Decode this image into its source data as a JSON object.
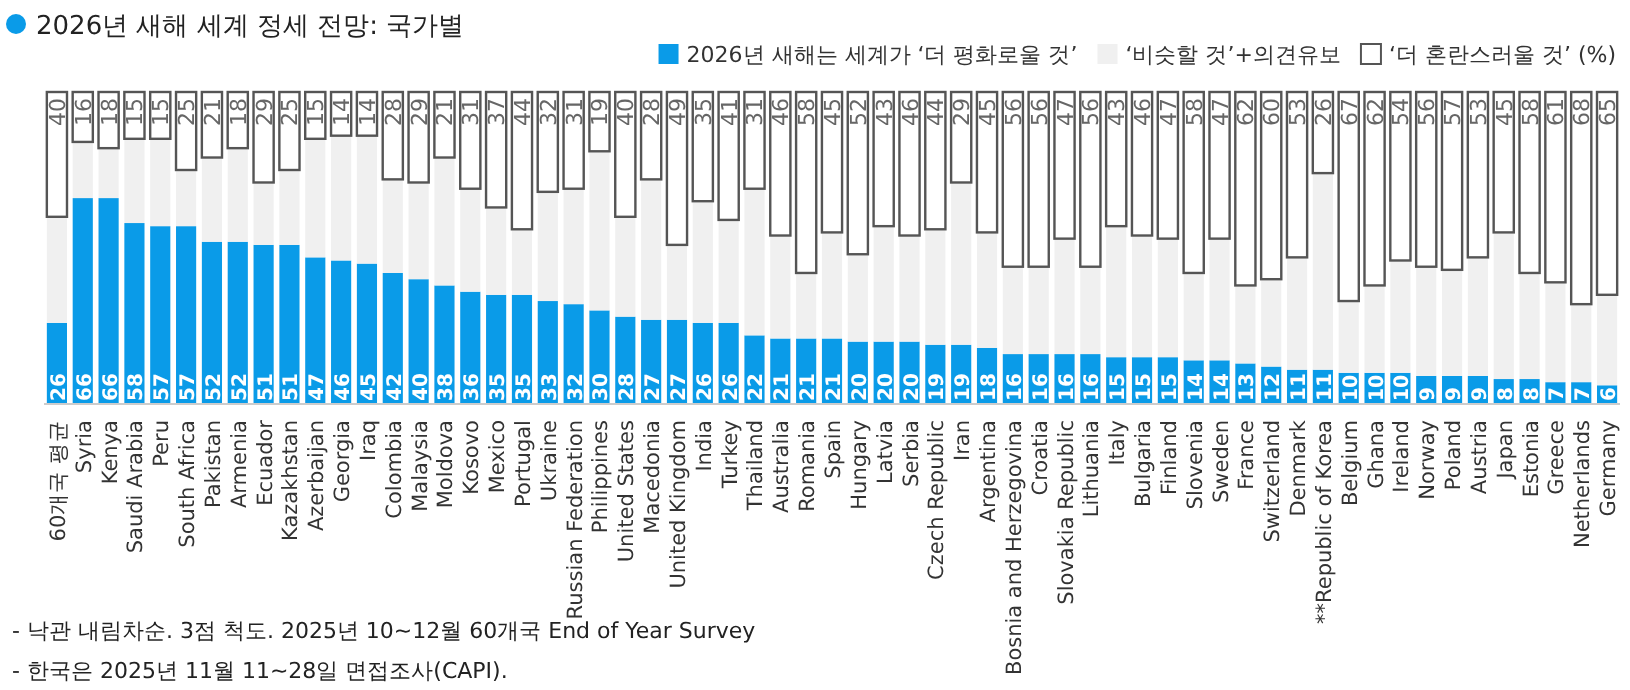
{
  "chart_data": {
    "type": "bar",
    "stacked": true,
    "title": "2026년 새해 세계 정세 전망: 국가별",
    "categories": [
      "60개국 평균",
      "Syria",
      "Kenya",
      "Saudi Arabia",
      "Peru",
      "South Africa",
      "Pakistan",
      "Armenia",
      "Ecuador",
      "Kazakhstan",
      "Azerbaijan",
      "Georgia",
      "Iraq",
      "Colombia",
      "Malaysia",
      "Moldova",
      "Kosovo",
      "Mexico",
      "Portugal",
      "Ukraine",
      "Russian Federation",
      "Philippines",
      "United States",
      "Macedonia",
      "United Kingdom",
      "India",
      "Turkey",
      "Thailand",
      "Australia",
      "Romania",
      "Spain",
      "Hungary",
      "Latvia",
      "Serbia",
      "Czech Republic",
      "Iran",
      "Argentina",
      "Bosnia and Herzegovina",
      "Croatia",
      "Slovakia Republic",
      "Lithuania",
      "Italy",
      "Bulgaria",
      "Finland",
      "Slovenia",
      "Sweden",
      "France",
      "Switzerland",
      "Denmark",
      "**Republic of Korea",
      "Belgium",
      "Ghana",
      "Ireland",
      "Norway",
      "Poland",
      "Austria",
      "Japan",
      "Estonia",
      "Greece",
      "Netherlands",
      "Germany"
    ],
    "series": [
      {
        "name": "2026년 새해는 세계가 ‘더 평화로울 것’",
        "color": "#0a9be8",
        "values": [
          26,
          66,
          66,
          58,
          57,
          57,
          52,
          52,
          51,
          51,
          47,
          46,
          45,
          42,
          40,
          38,
          36,
          35,
          35,
          33,
          32,
          30,
          28,
          27,
          27,
          26,
          26,
          22,
          21,
          21,
          21,
          20,
          20,
          20,
          19,
          19,
          18,
          16,
          16,
          16,
          16,
          15,
          15,
          15,
          14,
          14,
          13,
          12,
          11,
          11,
          10,
          10,
          10,
          9,
          9,
          9,
          8,
          8,
          7,
          7,
          6
        ],
        "value_labels": [
          "26",
          "66",
          "66",
          "58",
          "57",
          "57",
          "52",
          "52",
          "51",
          "51",
          "47",
          "46",
          "45",
          "42",
          "40",
          "38",
          "36",
          "35",
          "35",
          "33",
          "32",
          "30",
          "28",
          "27",
          "27",
          "26",
          "26",
          "22",
          "21",
          "21",
          "21",
          "20",
          "20",
          "20",
          "19",
          "19",
          "18",
          "16",
          "16",
          "16",
          "16",
          "15",
          "15",
          "15",
          "14",
          "14",
          "13",
          "12",
          "11",
          "11",
          "10",
          "10",
          "10",
          "9",
          "9",
          "9",
          "8",
          "8",
          "7",
          "7",
          "6"
        ]
      },
      {
        "name": "‘비슷할 것’+의견유보",
        "color": "#f0f0f0",
        "values": [
          34,
          18,
          16,
          27,
          28,
          18,
          27,
          30,
          20,
          24,
          38,
          40,
          41,
          30,
          31,
          41,
          33,
          28,
          21,
          35,
          37,
          51,
          32,
          45,
          24,
          39,
          33,
          47,
          33,
          21,
          34,
          28,
          37,
          34,
          37,
          52,
          37,
          28,
          28,
          37,
          28,
          42,
          39,
          38,
          28,
          39,
          25,
          28,
          36,
          63,
          23,
          28,
          36,
          35,
          34,
          38,
          47,
          34,
          32,
          25,
          29
        ]
      },
      {
        "name": "‘더 혼란스러울 것’ (%)",
        "color": "#ffffff",
        "values": [
          40,
          16,
          18,
          15,
          15,
          25,
          21,
          18,
          29,
          25,
          15,
          14,
          14,
          28,
          29,
          21,
          31,
          37,
          44,
          32,
          31,
          19,
          40,
          28,
          49,
          35,
          41,
          31,
          46,
          58,
          45,
          52,
          43,
          46,
          44,
          29,
          45,
          56,
          56,
          47,
          56,
          43,
          46,
          47,
          58,
          47,
          62,
          60,
          53,
          26,
          67,
          62,
          54,
          56,
          57,
          53,
          45,
          58,
          61,
          68,
          65
        ],
        "value_labels": [
          "40",
          "16",
          "18",
          "15",
          "15",
          "25",
          "21",
          "18",
          "29",
          "25",
          "15",
          "14",
          "14",
          "28",
          "29",
          "21",
          "31",
          "37",
          "44",
          "32",
          "31",
          "19",
          "40",
          "28",
          "49",
          "35",
          "41",
          "31",
          "46",
          "58",
          "45",
          "52",
          "43",
          "46",
          "44",
          "29",
          "45",
          "56",
          "56",
          "47",
          "56",
          "43",
          "46",
          "47",
          "58",
          "47",
          "62",
          "60",
          "53",
          "26",
          "67",
          "62",
          "54",
          "56",
          "57",
          "53",
          "45",
          "58",
          "61",
          "68",
          "65"
        ]
      }
    ],
    "ylim": [
      0,
      100
    ],
    "tick_labels": "x",
    "legend": "top right",
    "annotations": [
      "- 낙관 내림차순. 3점 척도. 2025년 10~12월 60개국 End of Year Survey",
      "- 한국은 2025년 11월 11~28일 면접조사(CAPI)."
    ]
  }
}
